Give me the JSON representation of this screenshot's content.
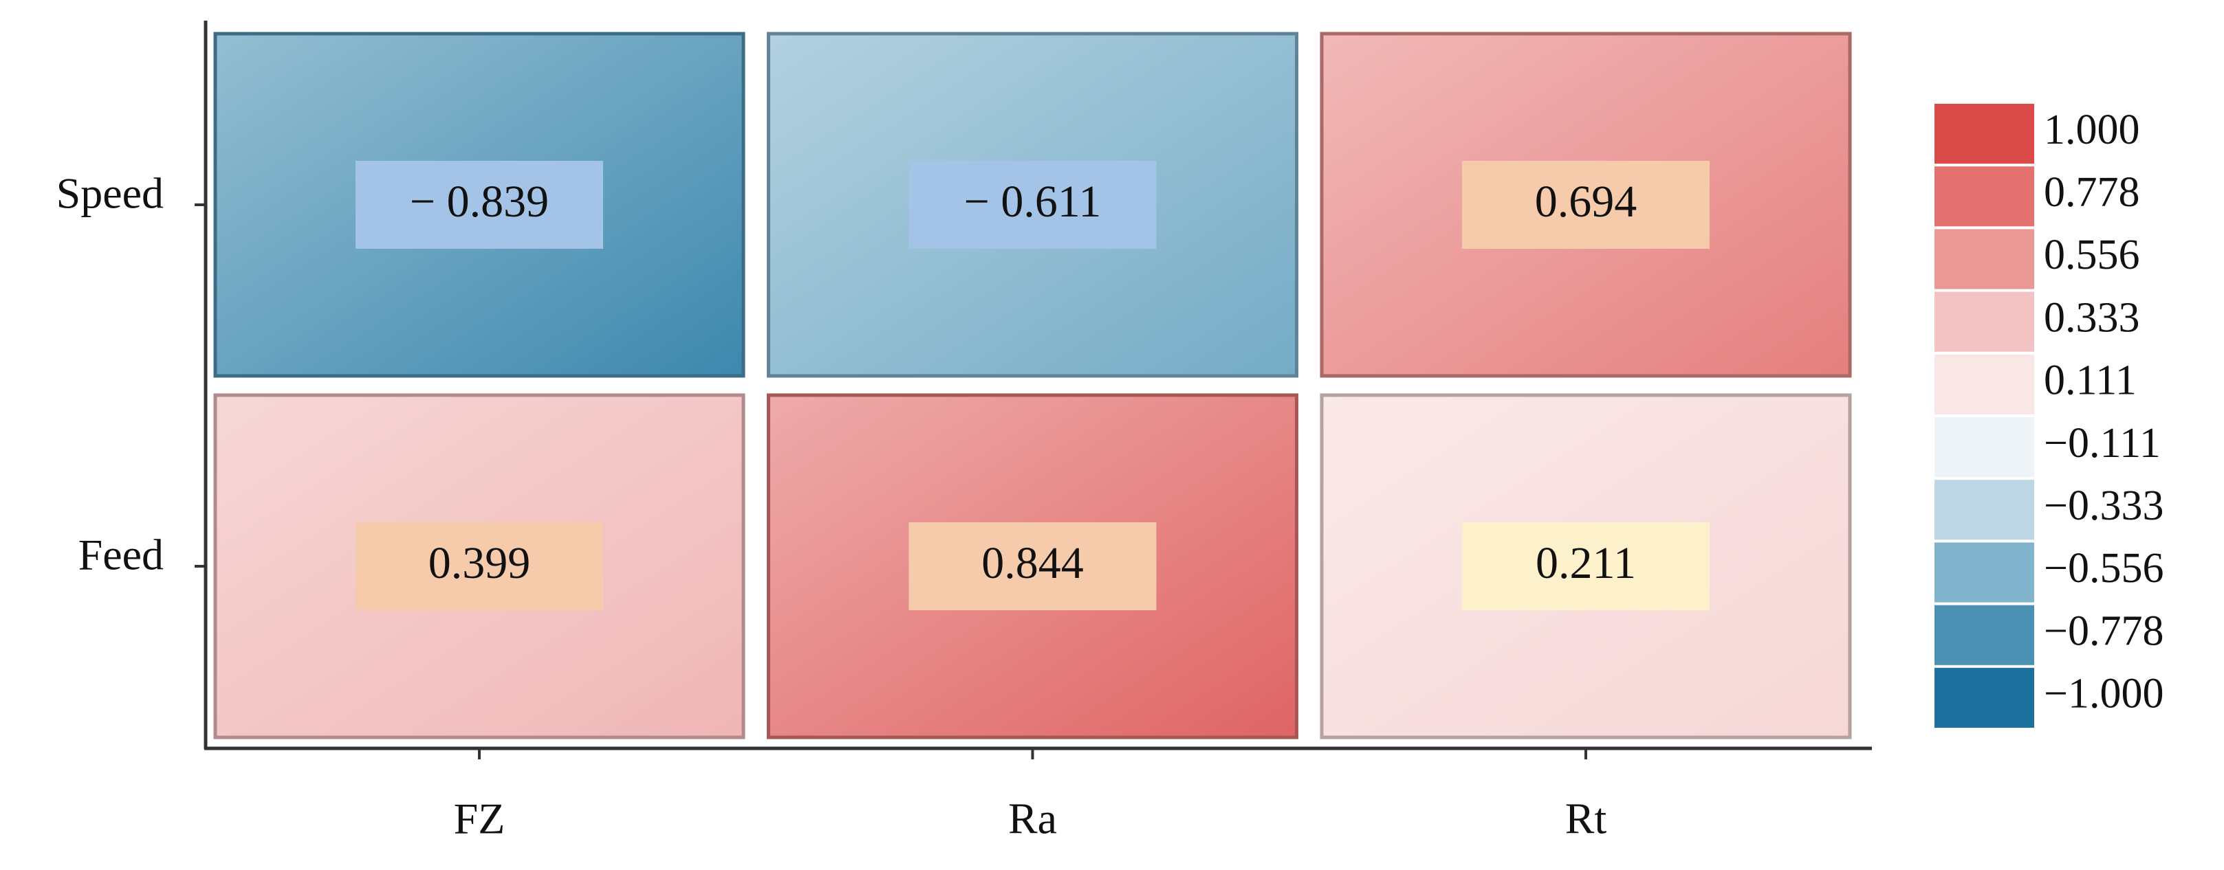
{
  "chart_data": {
    "type": "heatmap",
    "rows": [
      "Speed",
      "Feed"
    ],
    "columns": [
      "FZ",
      "Ra",
      "Rt"
    ],
    "values": [
      [
        -0.839,
        -0.611,
        0.694
      ],
      [
        0.399,
        0.844,
        0.211
      ]
    ],
    "value_labels": [
      [
        "− 0.839",
        "− 0.611",
        "0.694"
      ],
      [
        "0.399",
        "0.844",
        "0.211"
      ]
    ],
    "value_label_colors": [
      [
        "#a3c4e6",
        "#a3c4e6",
        "#f6cbab"
      ],
      [
        "#f6cbab",
        "#f6cbab",
        "#fdf1cc"
      ]
    ],
    "legend": {
      "ticks": [
        {
          "value": 1,
          "label": "1.000"
        },
        0.778,
        0.556,
        0.333,
        0.111,
        {
          "value": -0.111,
          "label": "−0.111"
        },
        {
          "value": -0.333,
          "label": "−0.333"
        },
        {
          "value": -0.556,
          "label": "−0.556"
        },
        {
          "value": -0.778,
          "label": "−0.778"
        },
        {
          "value": -1,
          "label": "−1.000"
        }
      ],
      "colors": [
        "#d94a48",
        "#e27170",
        "#ea9796",
        "#f3c3c3",
        "#f9e7e6",
        "#eef3f7",
        "#bdd6e3",
        "#82b3cc",
        "#4a91b4",
        "#1c709e"
      ]
    }
  }
}
